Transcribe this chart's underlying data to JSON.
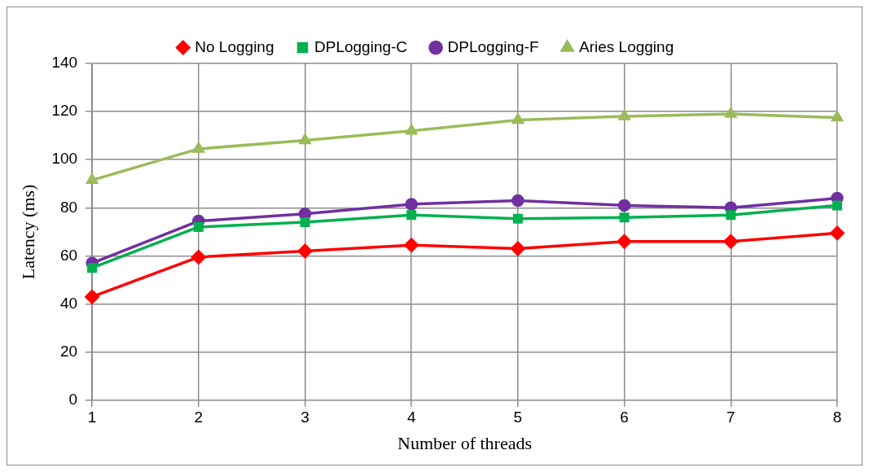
{
  "chart_data": {
    "type": "line",
    "xlabel": "Number of threads",
    "ylabel": "Latency (ms)",
    "categories": [
      "1",
      "2",
      "3",
      "4",
      "5",
      "6",
      "7",
      "8"
    ],
    "series": [
      {
        "name": "No Logging",
        "color": "#ff0000",
        "marker": "diamond",
        "values": [
          43,
          59.5,
          62,
          64.5,
          63,
          66,
          66,
          69.5
        ]
      },
      {
        "name": "DPLogging-C",
        "color": "#00b050",
        "marker": "square",
        "values": [
          55,
          72,
          74,
          77,
          75.5,
          76,
          77,
          81
        ]
      },
      {
        "name": "DPLogging-F",
        "color": "#7030a0",
        "marker": "circle",
        "values": [
          57,
          74.5,
          77.5,
          81.5,
          83,
          81,
          80,
          84
        ]
      },
      {
        "name": "Aries Logging",
        "color": "#9bbb59",
        "marker": "triangle",
        "values": [
          91.5,
          104.5,
          108,
          112,
          116.5,
          118,
          119,
          117.5
        ]
      }
    ],
    "ylim": [
      0,
      140
    ],
    "yticks": [
      0,
      20,
      40,
      60,
      80,
      100,
      120,
      140
    ],
    "grid": true,
    "legend": "top",
    "line_style": "solid"
  }
}
